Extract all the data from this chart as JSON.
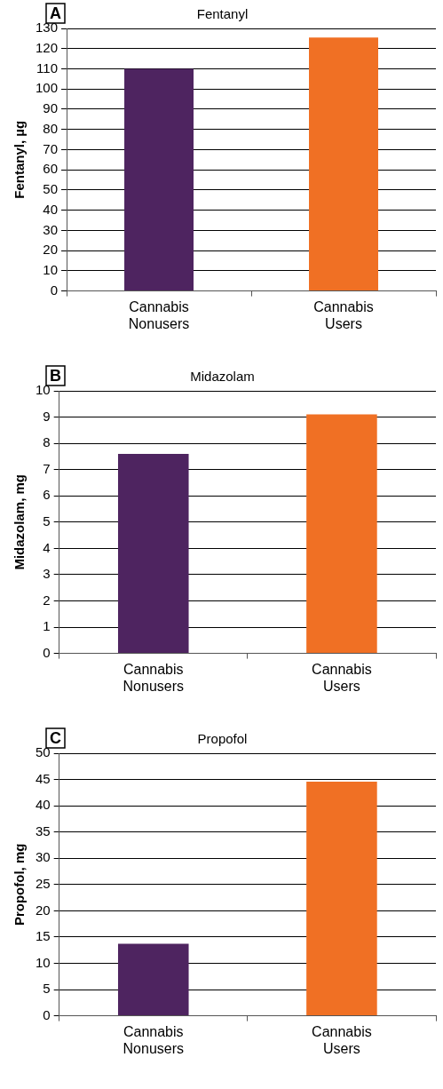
{
  "chart_data": [
    {
      "type": "bar",
      "title": "Fentanyl",
      "ylabel": "Fentanyl, µg",
      "annotations": [
        "A"
      ],
      "categories": [
        "Cannabis Nonusers",
        "Cannabis Users"
      ],
      "values": [
        110,
        125.5
      ],
      "colors": [
        "#4e2460",
        "#f07024"
      ],
      "ylim": [
        0,
        130
      ],
      "yticks": [
        0,
        10,
        20,
        30,
        40,
        50,
        60,
        70,
        80,
        90,
        100,
        110,
        120,
        130
      ],
      "grid": "y"
    },
    {
      "type": "bar",
      "title": "Midazolam",
      "ylabel": "Midazolam, mg",
      "annotations": [
        "B"
      ],
      "categories": [
        "Cannabis Nonusers",
        "Cannabis Users"
      ],
      "values": [
        7.6,
        9.1
      ],
      "colors": [
        "#4e2460",
        "#f07024"
      ],
      "ylim": [
        0,
        10
      ],
      "yticks": [
        0,
        1,
        2,
        3,
        4,
        5,
        6,
        7,
        8,
        9,
        10
      ],
      "grid": "y"
    },
    {
      "type": "bar",
      "title": "Propofol",
      "ylabel": "Propofol, mg",
      "annotations": [
        "C"
      ],
      "categories": [
        "Cannabis Nonusers",
        "Cannabis Users"
      ],
      "values": [
        13.7,
        44.6
      ],
      "colors": [
        "#4e2460",
        "#f07024"
      ],
      "ylim": [
        0,
        50
      ],
      "yticks": [
        0,
        5,
        10,
        15,
        20,
        25,
        30,
        35,
        40,
        45,
        50
      ],
      "grid": "y"
    }
  ]
}
